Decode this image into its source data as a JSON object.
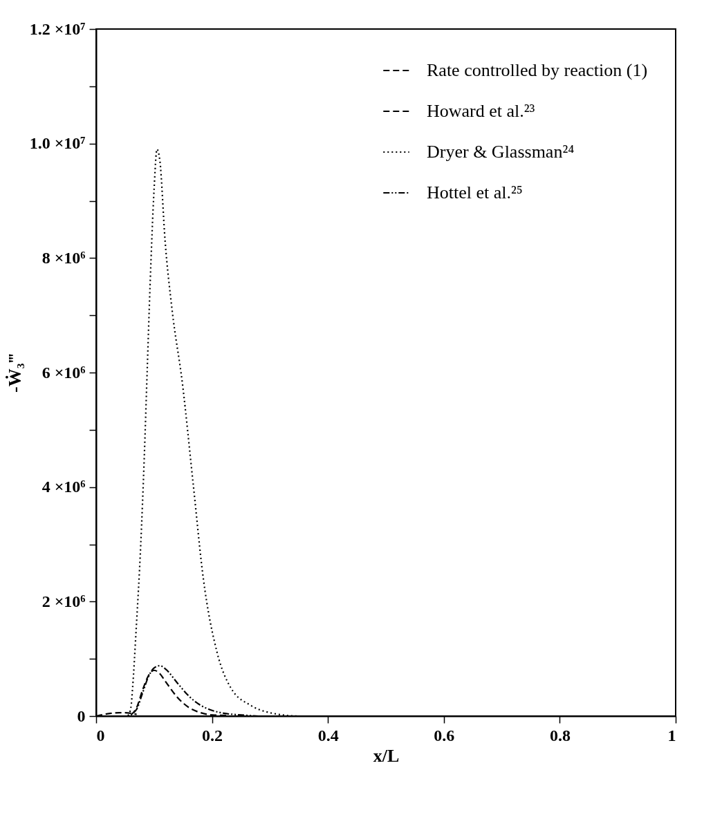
{
  "chart_data": {
    "type": "line",
    "xlabel": "x/L",
    "ylabel": "-Ẇ₃‴",
    "xlim": [
      0,
      1
    ],
    "xticks": [
      0,
      0.2,
      0.4,
      0.6,
      0.8,
      1
    ],
    "ylim": [
      0,
      12000000
    ],
    "yticks": [
      {
        "value": 0,
        "label": "0"
      },
      {
        "value": 1000000,
        "label": null
      },
      {
        "value": 2000000,
        "label": "2 ×10⁶"
      },
      {
        "value": 3000000,
        "label": null
      },
      {
        "value": 4000000,
        "label": "4 ×10⁶"
      },
      {
        "value": 5000000,
        "label": null
      },
      {
        "value": 6000000,
        "label": "6 ×10⁶"
      },
      {
        "value": 7000000,
        "label": null
      },
      {
        "value": 8000000,
        "label": "8 ×10⁶"
      },
      {
        "value": 9000000,
        "label": null
      },
      {
        "value": 10000000,
        "label": "1.0 ×10⁷"
      },
      {
        "value": 11000000,
        "label": null
      },
      {
        "value": 12000000,
        "label": "1.2 ×10⁷"
      }
    ],
    "grid": false,
    "legend": "top right",
    "marker": "none",
    "series": [
      {
        "name": "Rate controlled by reaction (1)",
        "color": "#000000",
        "line_style": "dashed",
        "x": [
          0.06,
          0.07,
          0.08,
          0.09,
          0.1,
          0.11,
          0.12,
          0.14,
          0.16,
          0.18,
          0.2,
          0.23
        ],
        "values": [
          20000,
          150000,
          450000,
          700000,
          800000,
          740000,
          600000,
          330000,
          150000,
          60000,
          20000,
          10000
        ]
      },
      {
        "name": "Howard et al.²³",
        "color": "#000000",
        "line_style": "dashed",
        "x": [
          0,
          0.02,
          0.04,
          0.05,
          0.06,
          0.07
        ],
        "values": [
          0,
          40000,
          60000,
          60000,
          50000,
          30000
        ]
      },
      {
        "name": "Dryer & Glassman²⁴",
        "color": "#000000",
        "line_style": "dotted",
        "x": [
          0.055,
          0.06,
          0.063,
          0.069,
          0.077,
          0.083,
          0.088,
          0.093,
          0.1,
          0.105,
          0.11,
          0.119,
          0.131,
          0.149,
          0.167,
          0.185,
          0.209,
          0.232,
          0.268,
          0.304,
          0.352,
          0.5,
          1
        ],
        "values": [
          10000,
          150000,
          500000,
          1500000,
          3000000,
          4500000,
          6000000,
          7500000,
          9200000,
          9900000,
          9700000,
          8300000,
          7100000,
          5800000,
          4100000,
          2400000,
          1100000,
          500000,
          180000,
          50000,
          0,
          0,
          0
        ]
      },
      {
        "name": "Hottel et al.²⁵",
        "color": "#000000",
        "line_style": "dashdot",
        "x": [
          0.065,
          0.07,
          0.08,
          0.09,
          0.1,
          0.11,
          0.12,
          0.14,
          0.16,
          0.18,
          0.2,
          0.22,
          0.25,
          0.28
        ],
        "values": [
          60000,
          120000,
          400000,
          680000,
          840000,
          880000,
          820000,
          580000,
          350000,
          190000,
          100000,
          50000,
          20000,
          0
        ]
      }
    ]
  }
}
